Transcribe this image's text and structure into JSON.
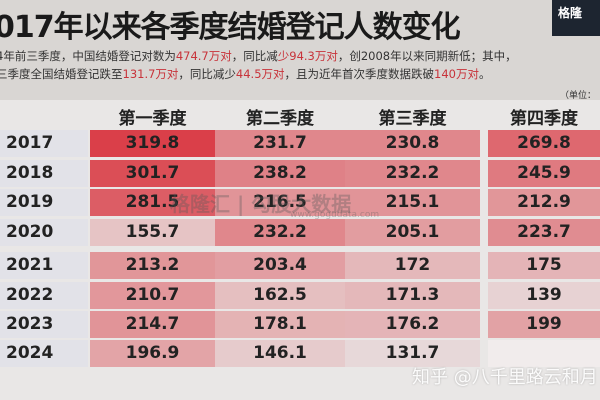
{
  "header": {
    "title": "017年以来各季度结婚登记人数变化",
    "line1": [
      "4年前三季度，中国结婚登记对数为",
      "474.7万对",
      "，同比减",
      "少94.3万对",
      "，创2008年以来同期新低；其中，"
    ],
    "line2": [
      "三季度全国结婚登记跌至",
      "131.7万对",
      "，同比减少",
      "44.5万对",
      "，且为近年首次季度数据跌破",
      "140万对",
      "。"
    ],
    "unit": "（单位：",
    "logo": "格隆"
  },
  "watermark": {
    "text": "格隆汇 | 勾股大数据",
    "url": "www.gogudata.com"
  },
  "zhihu": "知乎 @八千里路云和月",
  "colors": {
    "heat": "#d8323c",
    "base": "#f4eeee",
    "accent": "#c8333a"
  },
  "chart_data": {
    "type": "heatmap",
    "title": "017年以来各季度结婚登记人数变化",
    "columns": [
      "第一季度",
      "第二季度",
      "第三季度",
      "第四季度"
    ],
    "rows": [
      "2017",
      "2018",
      "2019",
      "2020",
      "2021",
      "2022",
      "2023",
      "2024"
    ],
    "values": [
      [
        319.8,
        231.7,
        230.8,
        269.8
      ],
      [
        301.7,
        238.2,
        232.2,
        245.9
      ],
      [
        281.5,
        216.5,
        215.1,
        212.9
      ],
      [
        155.7,
        232.2,
        205.1,
        223.7
      ],
      [
        213.2,
        203.4,
        172,
        175
      ],
      [
        210.7,
        162.5,
        171.3,
        139
      ],
      [
        214.7,
        178.1,
        176.2,
        199
      ],
      [
        196.9,
        146.1,
        131.7,
        null
      ]
    ]
  }
}
